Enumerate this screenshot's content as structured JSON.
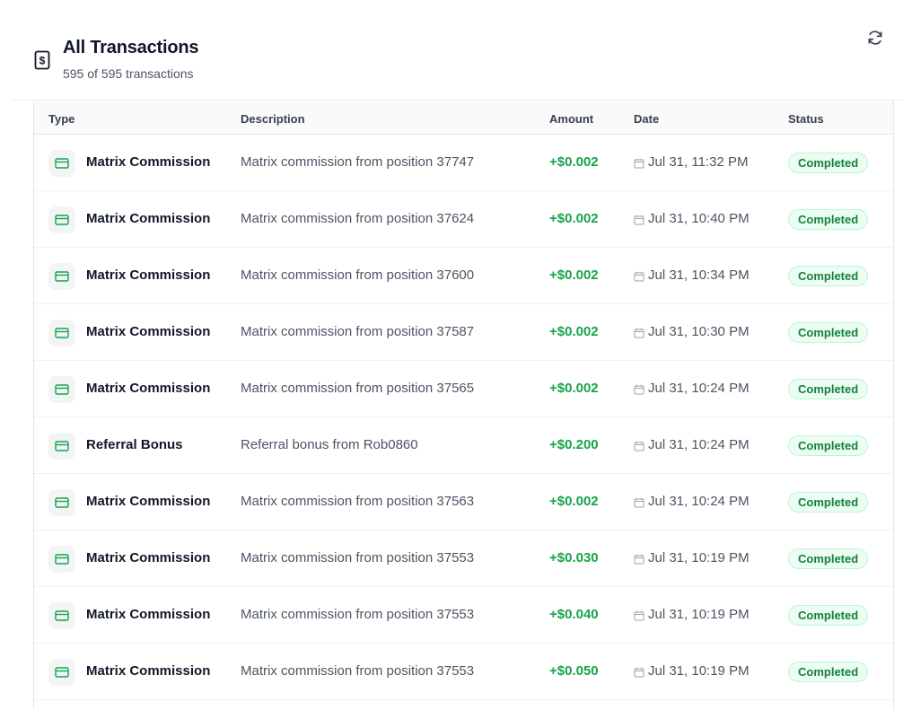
{
  "header": {
    "title": "All Transactions",
    "subtitle": "595 of 595 transactions",
    "title_icon": "dollar-receipt-icon",
    "refresh_icon": "refresh-icon"
  },
  "table": {
    "columns": [
      "Type",
      "Description",
      "Amount",
      "Date",
      "Status"
    ],
    "rows": [
      {
        "type": "Matrix Commission",
        "description": "Matrix commission from position 37747",
        "amount": "+$0.002",
        "date": "Jul 31, 11:32 PM",
        "status": "Completed"
      },
      {
        "type": "Matrix Commission",
        "description": "Matrix commission from position 37624",
        "amount": "+$0.002",
        "date": "Jul 31, 10:40 PM",
        "status": "Completed"
      },
      {
        "type": "Matrix Commission",
        "description": "Matrix commission from position 37600",
        "amount": "+$0.002",
        "date": "Jul 31, 10:34 PM",
        "status": "Completed"
      },
      {
        "type": "Matrix Commission",
        "description": "Matrix commission from position 37587",
        "amount": "+$0.002",
        "date": "Jul 31, 10:30 PM",
        "status": "Completed"
      },
      {
        "type": "Matrix Commission",
        "description": "Matrix commission from position 37565",
        "amount": "+$0.002",
        "date": "Jul 31, 10:24 PM",
        "status": "Completed"
      },
      {
        "type": "Referral Bonus",
        "description": "Referral bonus from Rob0860",
        "amount": "+$0.200",
        "date": "Jul 31, 10:24 PM",
        "status": "Completed"
      },
      {
        "type": "Matrix Commission",
        "description": "Matrix commission from position 37563",
        "amount": "+$0.002",
        "date": "Jul 31, 10:24 PM",
        "status": "Completed"
      },
      {
        "type": "Matrix Commission",
        "description": "Matrix commission from position 37553",
        "amount": "+$0.030",
        "date": "Jul 31, 10:19 PM",
        "status": "Completed"
      },
      {
        "type": "Matrix Commission",
        "description": "Matrix commission from position 37553",
        "amount": "+$0.040",
        "date": "Jul 31, 10:19 PM",
        "status": "Completed"
      },
      {
        "type": "Matrix Commission",
        "description": "Matrix commission from position 37553",
        "amount": "+$0.050",
        "date": "Jul 31, 10:19 PM",
        "status": "Completed"
      }
    ]
  },
  "colors": {
    "accent_green": "#16a34a",
    "status_bg": "#ecfdf3",
    "status_text": "#15803d"
  }
}
